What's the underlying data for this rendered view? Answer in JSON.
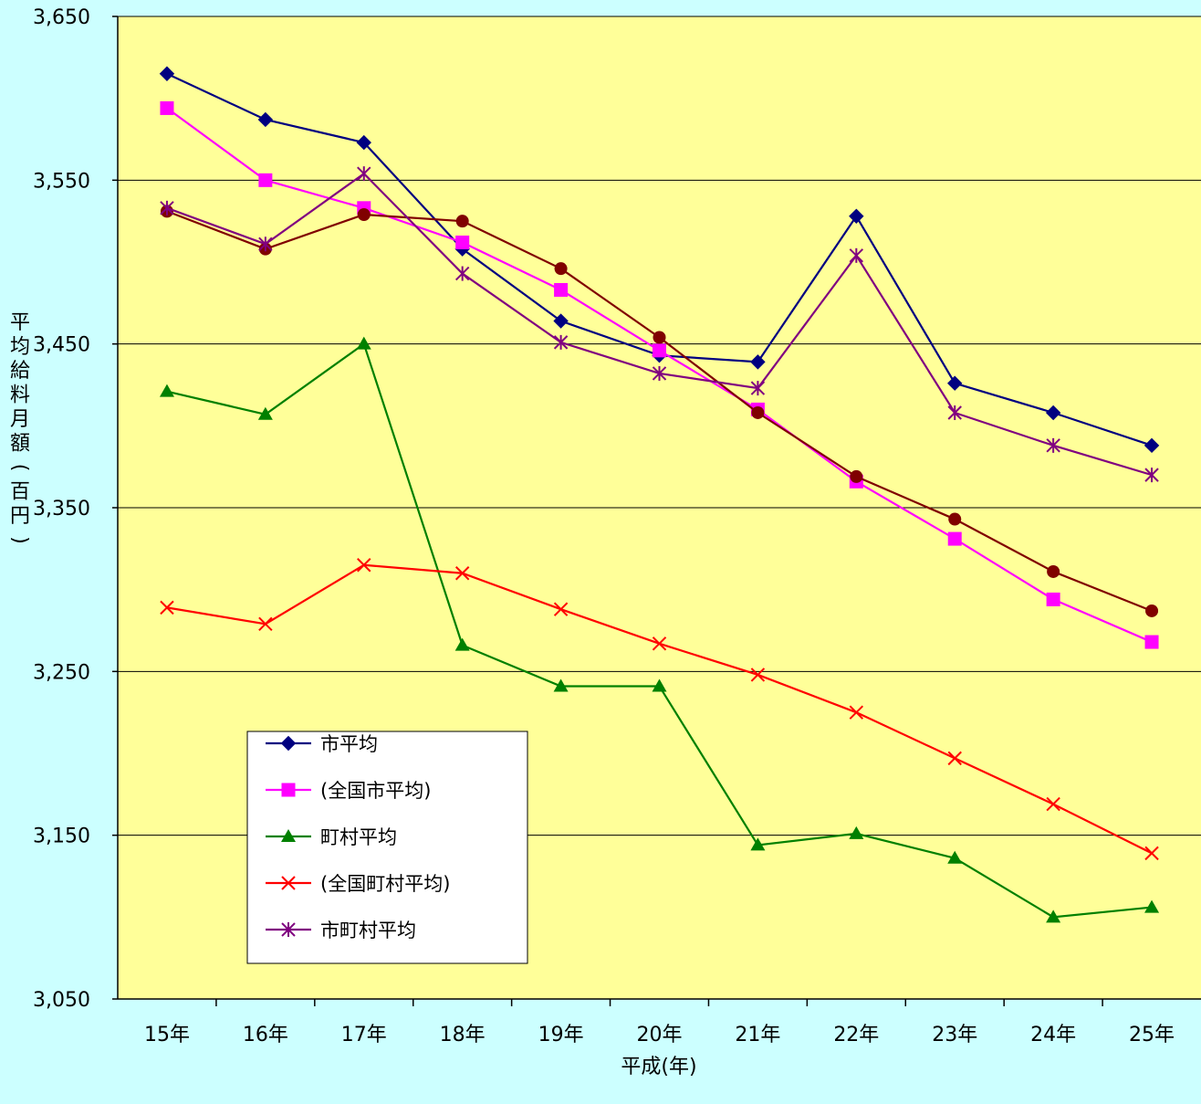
{
  "chart_data": {
    "type": "line",
    "title": "",
    "xlabel": "平成(年)",
    "ylabel": "平均給料月額(百円)",
    "ylim": [
      3050,
      3650
    ],
    "ytick_values": [
      3050,
      3150,
      3250,
      3350,
      3450,
      3550,
      3650
    ],
    "ytick_labels": [
      "3,050",
      "3,150",
      "3,250",
      "3,350",
      "3,450",
      "3,550",
      "3,650"
    ],
    "categories": [
      "15年",
      "16年",
      "17年",
      "18年",
      "19年",
      "20年",
      "21年",
      "22年",
      "23年",
      "24年",
      "25年"
    ],
    "grid": true,
    "legend_position": "bottom-left inside plot",
    "colors": {
      "page_background": "#ccffff",
      "plot_background": "#ffff99"
    },
    "series": [
      {
        "name": "市平均",
        "color": "#000080",
        "marker": "diamond",
        "values": [
          3615,
          3587,
          3573,
          3508,
          3464,
          3443,
          3439,
          3528,
          3426,
          3408,
          3388
        ],
        "in_legend": true
      },
      {
        "name": "(全国市平均)",
        "color": "#ff00ff",
        "marker": "square",
        "values": [
          3594,
          3550,
          3533,
          3512,
          3483,
          3446,
          3410,
          3366,
          3331,
          3294,
          3268
        ],
        "in_legend": true
      },
      {
        "name": "",
        "color": "#800000",
        "marker": "circle",
        "values": [
          3531,
          3508,
          3529,
          3525,
          3496,
          3454,
          3408,
          3369,
          3343,
          3311,
          3287
        ],
        "in_legend": false
      },
      {
        "name": "町村平均",
        "color": "#008000",
        "marker": "triangle",
        "values": [
          3421,
          3407,
          3450,
          3266,
          3241,
          3241,
          3144,
          3151,
          3136,
          3100,
          3106
        ],
        "in_legend": true
      },
      {
        "name": "(全国町村平均)",
        "color": "#ff0000",
        "marker": "x",
        "values": [
          3289,
          3279,
          3315,
          3310,
          3288,
          3267,
          3248,
          3225,
          3197,
          3169,
          3139
        ],
        "in_legend": true
      },
      {
        "name": "市町村平均",
        "color": "#800080",
        "marker": "star",
        "values": [
          3533,
          3511,
          3554,
          3493,
          3451,
          3432,
          3423,
          3504,
          3408,
          3388,
          3370
        ],
        "in_legend": true
      }
    ]
  }
}
